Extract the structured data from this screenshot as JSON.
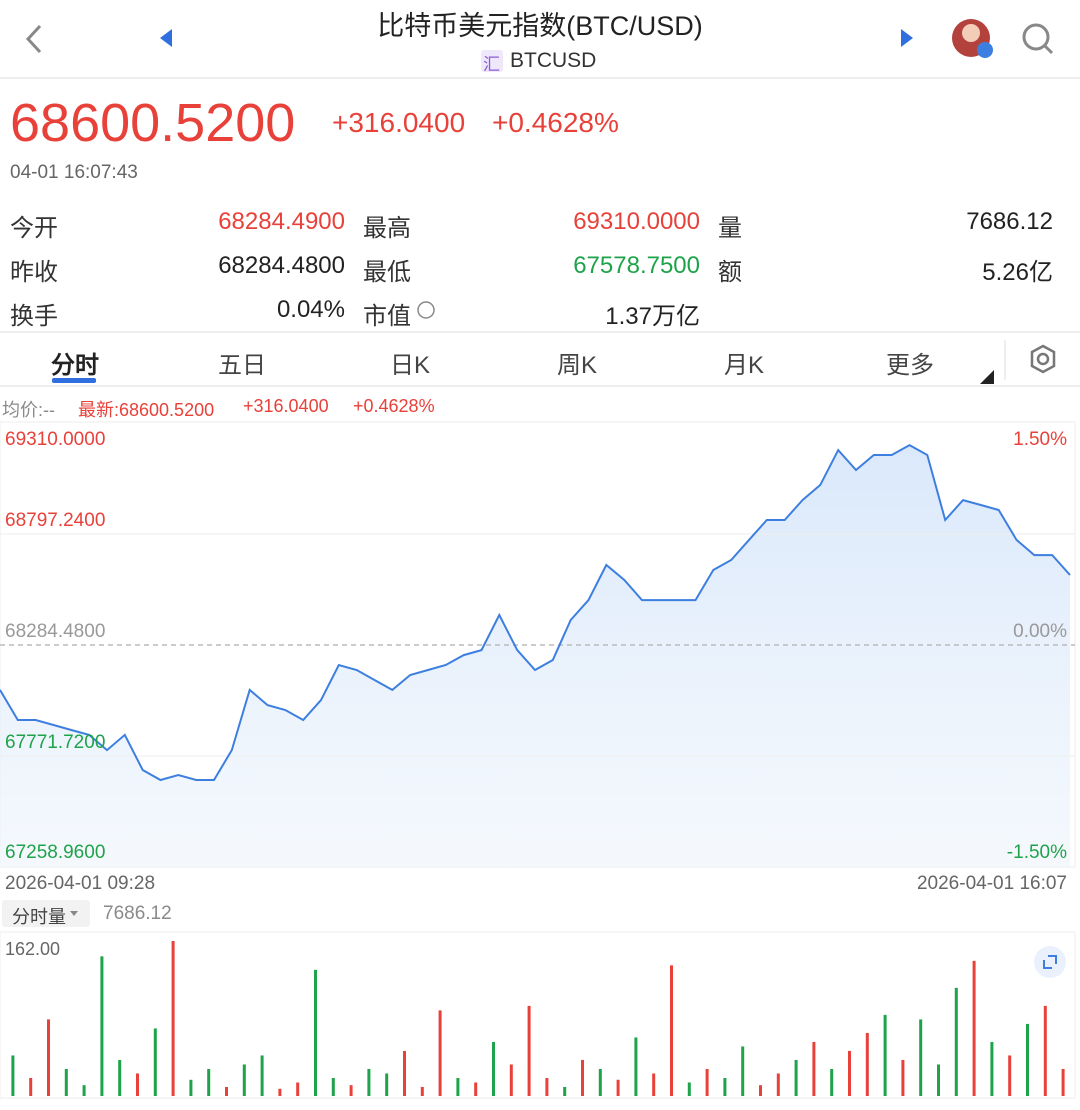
{
  "header": {
    "title": "比特币美元指数(BTC/USD)",
    "badge": "汇",
    "symbol": "BTCUSD"
  },
  "quote": {
    "price": "68600.5200",
    "change": "+316.0400",
    "change_pct": "+0.4628%",
    "time": "04-01 16:07:43"
  },
  "stats": [
    [
      {
        "label": "今开",
        "value": "68284.4900"
      },
      {
        "label": "最高",
        "value": "69310.0000"
      },
      {
        "label": "量",
        "value": "7686.12"
      }
    ],
    [
      {
        "label": "昨收",
        "value": "68284.4800"
      },
      {
        "label": "最低",
        "value": "67578.7500"
      },
      {
        "label": "额",
        "value": "5.26亿"
      }
    ],
    [
      {
        "label": "换手",
        "value": "0.04%"
      },
      {
        "label": "市值",
        "value": "1.37万亿"
      }
    ]
  ],
  "tabs": [
    "分时",
    "五日",
    "日K",
    "周K",
    "月K",
    "更多"
  ],
  "info": {
    "avg": "均价:--",
    "latest": "最新:68600.5200",
    "change": "+316.0400",
    "change_pct": "+0.4628%"
  },
  "chart_data": [
    {
      "type": "line",
      "color": "#3d7fe0",
      "xlim": [
        "2026-04-01 09:28",
        "2026-04-01 16:07"
      ],
      "ylim": [
        67258.96,
        69310
      ],
      "yticks": [
        {
          "value": 69310,
          "label": "69310.0000"
        },
        {
          "value": 68797.24,
          "label": "68797.2400"
        },
        {
          "value": 68284.48,
          "label": "68284.4800"
        },
        {
          "value": 67771.72,
          "label": "67771.7200"
        },
        {
          "value": 67258.96,
          "label": "67258.9600"
        }
      ],
      "y2lim": [
        -1.5,
        1.5
      ],
      "y2ticks": [
        {
          "value": 1.5,
          "label": "1.50%"
        },
        {
          "value": 0,
          "label": "0.00%"
        },
        {
          "value": -1.5,
          "label": "-1.50%"
        }
      ],
      "values": [
        68077,
        67938,
        67938,
        67915,
        67892,
        67869,
        67799,
        67869,
        67707,
        67661,
        67684,
        67661,
        67661,
        67799,
        68077,
        68007,
        67984,
        67938,
        68030,
        68192,
        68169,
        68123,
        68077,
        68146,
        68169,
        68192,
        68238,
        68261,
        68423,
        68261,
        68169,
        68215,
        68400,
        68492,
        68654,
        68585,
        68492,
        68492,
        68492,
        68492,
        68631,
        68677,
        68770,
        68862,
        68862,
        68954,
        69024,
        69185,
        69093,
        69162,
        69162,
        69208,
        69162,
        68862,
        68954,
        68931,
        68908,
        68770,
        68700,
        68700,
        68608
      ]
    },
    {
      "type": "bar",
      "title": "分时量",
      "total": "7686.12",
      "ylim": [
        0,
        182
      ],
      "yticks": [
        {
          "value": 162,
          "label": "162.00"
        }
      ],
      "values": [
        45,
        20,
        85,
        30,
        12,
        155,
        40,
        25,
        75,
        172,
        18,
        30,
        10,
        35,
        45,
        8,
        15,
        140,
        20,
        12,
        30,
        25,
        50,
        10,
        95,
        20,
        15,
        60,
        35,
        100,
        20,
        10,
        40,
        30,
        18,
        65,
        25,
        145,
        15,
        30,
        20,
        55,
        12,
        25,
        40,
        60,
        30,
        50,
        70,
        90,
        40,
        85,
        35,
        120,
        150,
        60,
        45,
        80,
        100,
        30
      ],
      "colors": [
        "#1fa34a",
        "#e8413a",
        "#e8413a",
        "#1fa34a",
        "#1fa34a",
        "#1fa34a",
        "#1fa34a",
        "#e8413a",
        "#1fa34a",
        "#e8413a",
        "#1fa34a",
        "#1fa34a",
        "#e8413a",
        "#1fa34a",
        "#1fa34a",
        "#e8413a",
        "#e8413a",
        "#1fa34a",
        "#1fa34a",
        "#e8413a",
        "#1fa34a",
        "#1fa34a",
        "#e8413a",
        "#e8413a",
        "#e8413a",
        "#1fa34a",
        "#e8413a",
        "#1fa34a",
        "#e8413a",
        "#e8413a",
        "#e8413a",
        "#1fa34a",
        "#e8413a",
        "#1fa34a",
        "#e8413a",
        "#1fa34a",
        "#e8413a",
        "#e8413a",
        "#1fa34a",
        "#e8413a",
        "#1fa34a",
        "#1fa34a",
        "#e8413a",
        "#e8413a",
        "#1fa34a",
        "#e8413a",
        "#1fa34a",
        "#e8413a",
        "#e8413a",
        "#1fa34a",
        "#e8413a",
        "#1fa34a",
        "#1fa34a",
        "#1fa34a",
        "#e8413a",
        "#1fa34a",
        "#e8413a",
        "#1fa34a",
        "#e8413a",
        "#e8413a"
      ]
    }
  ]
}
